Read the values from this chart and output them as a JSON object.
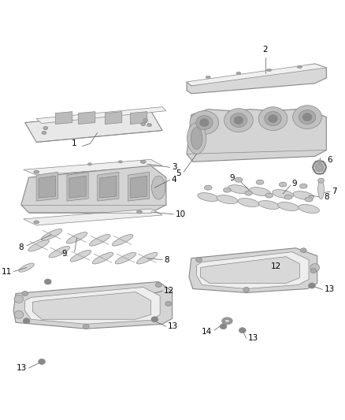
{
  "background_color": "#ffffff",
  "line_color": "#888888",
  "dark_line": "#555555",
  "text_color": "#000000",
  "label_fontsize": 7.5,
  "figsize": [
    4.38,
    5.33
  ],
  "dpi": 100,
  "part_fill": "#e8e8e8",
  "part_fill2": "#d4d4d4",
  "part_fill3": "#c0c0c0"
}
